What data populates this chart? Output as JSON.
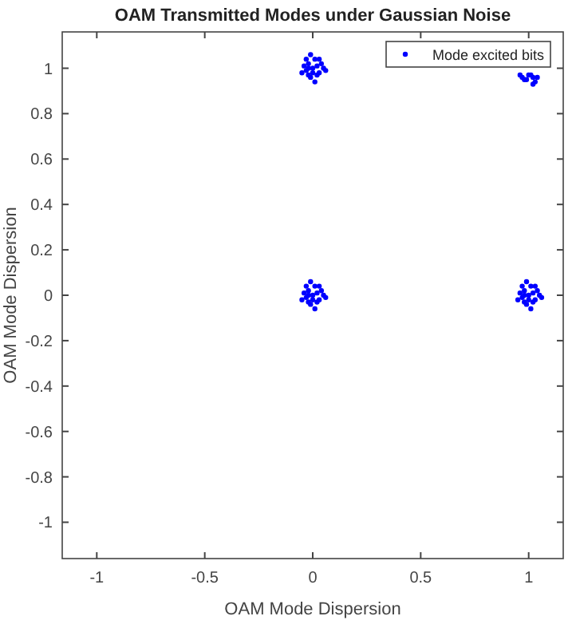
{
  "chart_data": {
    "type": "scatter",
    "title": "OAM Transmitted Modes under Gaussian Noise",
    "xlabel": "OAM Mode Dispersion",
    "ylabel": "OAM Mode Dispersion",
    "xlim": [
      -1.16,
      1.16
    ],
    "ylim": [
      -1.16,
      1.16
    ],
    "xticks": [
      -1,
      -0.5,
      0,
      0.5,
      1
    ],
    "yticks": [
      -1,
      -0.8,
      -0.6,
      -0.4,
      -0.2,
      0,
      0.2,
      0.4,
      0.6,
      0.8,
      1
    ],
    "grid": false,
    "legend": "top right",
    "marker": "circle",
    "series": [
      {
        "name": "Mode excited bits",
        "color": "#0000ff",
        "x": [
          0,
          0.02,
          -0.02,
          0.03,
          -0.03,
          0.01,
          -0.01,
          0.04,
          -0.04,
          0.02,
          -0.02,
          0.05,
          -0.05,
          0.01,
          -0.01,
          0.03,
          -0.03,
          0.06,
          0,
          -0.02,
          0,
          0.02,
          -0.02,
          0.03,
          -0.03,
          0.01,
          -0.01,
          0.04,
          -0.04,
          0.02,
          -0.02,
          0.05,
          -0.05,
          0.01,
          -0.01,
          0.03,
          -0.03,
          0.06,
          0,
          -0.02,
          1,
          1.02,
          0.98,
          1.03,
          0.97,
          1.01,
          0.99,
          1.04,
          0.96,
          1.02,
          0.98,
          1.05,
          0.95,
          1.01,
          0.99,
          1.03,
          0.97,
          1.06,
          1,
          0.98,
          1,
          1.02,
          0.98,
          1.03,
          0.97,
          1.01,
          0.99,
          1.04,
          0.96,
          1.02
        ],
        "values": [
          1,
          1.01,
          1.02,
          0.98,
          0.99,
          1.04,
          0.96,
          1.02,
          1.01,
          0.97,
          0.97,
          1,
          0.98,
          0.94,
          1.06,
          1.04,
          1.04,
          0.99,
          0.98,
          1,
          0,
          0.01,
          0.02,
          -0.02,
          -0.01,
          0.04,
          -0.04,
          0.02,
          0.01,
          -0.03,
          -0.03,
          0,
          -0.02,
          -0.06,
          0.06,
          0.04,
          0.04,
          -0.01,
          -0.02,
          0,
          0,
          0.01,
          0.02,
          -0.02,
          -0.01,
          0.04,
          -0.04,
          0.02,
          0.01,
          -0.03,
          -0.03,
          0,
          -0.02,
          -0.06,
          0.06,
          0.04,
          0.04,
          -0.01,
          -0.02,
          0,
          0.97,
          0.96,
          0.95,
          0.94,
          0.96,
          0.97,
          0.95,
          0.96,
          0.97,
          0.93
        ]
      }
    ]
  }
}
